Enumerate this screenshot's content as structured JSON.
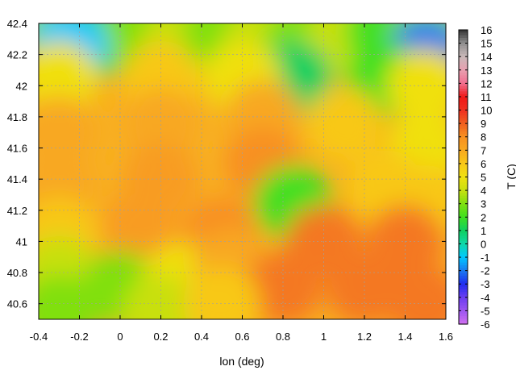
{
  "chart_data": {
    "type": "heatmap",
    "title": "",
    "xlabel": "lon (deg)",
    "ylabel": "",
    "colorbar_label": "T (C)",
    "xlim": [
      -0.4,
      1.6
    ],
    "ylim": [
      40.5,
      42.4
    ],
    "x_ticks": [
      "-0.4",
      "-0.2",
      "0",
      "0.2",
      "0.4",
      "0.6",
      "0.8",
      "1",
      "1.2",
      "1.4",
      "1.6"
    ],
    "y_ticks": [
      "40.6",
      "40.8",
      "41",
      "41.2",
      "41.4",
      "41.6",
      "41.8",
      "42",
      "42.2",
      "42.4"
    ],
    "colorbar_range": [
      -6,
      16
    ],
    "colorbar_ticks": [
      "16",
      "15",
      "14",
      "13",
      "12",
      "11",
      "10",
      "9",
      "8",
      "7",
      "6",
      "5",
      "4",
      "3",
      "2",
      "1",
      "0",
      "-1",
      "-2",
      "-3",
      "-4",
      "-5",
      "-6"
    ],
    "grid": true,
    "colormap": [
      {
        "t": -6,
        "color": "#d070f0"
      },
      {
        "t": -4,
        "color": "#6a3cf0"
      },
      {
        "t": -3,
        "color": "#1e2ef0"
      },
      {
        "t": -2,
        "color": "#1a7af0"
      },
      {
        "t": -1,
        "color": "#00c8ff"
      },
      {
        "t": 0,
        "color": "#10d8a8"
      },
      {
        "t": 1,
        "color": "#10d060"
      },
      {
        "t": 2,
        "color": "#40e020"
      },
      {
        "t": 3,
        "color": "#80e010"
      },
      {
        "t": 4,
        "color": "#c8e010"
      },
      {
        "t": 5,
        "color": "#f0e010"
      },
      {
        "t": 6,
        "color": "#f8c818"
      },
      {
        "t": 7,
        "color": "#f8a820"
      },
      {
        "t": 8,
        "color": "#f89020"
      },
      {
        "t": 9,
        "color": "#f06020"
      },
      {
        "t": 10,
        "color": "#f03020"
      },
      {
        "t": 11,
        "color": "#f01818"
      },
      {
        "t": 12,
        "color": "#f07090"
      },
      {
        "t": 13,
        "color": "#e8a0b0"
      },
      {
        "t": 14,
        "color": "#c8b8b8"
      },
      {
        "t": 15,
        "color": "#909090"
      },
      {
        "t": 16,
        "color": "#303030"
      }
    ],
    "temperature_samples": [
      {
        "lon": -0.3,
        "lat": 42.35,
        "t": 3
      },
      {
        "lon": -0.1,
        "lat": 42.3,
        "t": 2
      },
      {
        "lon": 0.1,
        "lat": 42.35,
        "t": 3
      },
      {
        "lon": 0.3,
        "lat": 42.3,
        "t": 4
      },
      {
        "lon": 0.5,
        "lat": 42.35,
        "t": 3
      },
      {
        "lon": 0.7,
        "lat": 42.3,
        "t": 4
      },
      {
        "lon": 0.9,
        "lat": 42.3,
        "t": 3
      },
      {
        "lon": 1.1,
        "lat": 42.3,
        "t": 4
      },
      {
        "lon": 1.3,
        "lat": 42.35,
        "t": 2
      },
      {
        "lon": 1.5,
        "lat": 42.35,
        "t": 3
      },
      {
        "lon": -0.25,
        "lat": 42.25,
        "t": -1
      },
      {
        "lon": 1.5,
        "lat": 42.2,
        "t": -2
      },
      {
        "lon": 0.85,
        "lat": 42.05,
        "t": 1
      },
      {
        "lon": 1.3,
        "lat": 42.05,
        "t": 2
      },
      {
        "lon": -0.3,
        "lat": 42.05,
        "t": 5
      },
      {
        "lon": 0.2,
        "lat": 42.05,
        "t": 6
      },
      {
        "lon": 0.6,
        "lat": 42.05,
        "t": 5
      },
      {
        "lon": 1.5,
        "lat": 42.0,
        "t": 5
      },
      {
        "lon": -0.3,
        "lat": 41.7,
        "t": 7
      },
      {
        "lon": 0.2,
        "lat": 41.75,
        "t": 7
      },
      {
        "lon": 0.7,
        "lat": 41.8,
        "t": 7
      },
      {
        "lon": 1.1,
        "lat": 41.75,
        "t": 6
      },
      {
        "lon": 1.5,
        "lat": 41.6,
        "t": 5
      },
      {
        "lon": -0.3,
        "lat": 41.35,
        "t": 7
      },
      {
        "lon": 0.2,
        "lat": 41.4,
        "t": 7.5
      },
      {
        "lon": 0.7,
        "lat": 41.5,
        "t": 8
      },
      {
        "lon": 1.3,
        "lat": 41.35,
        "t": 6
      },
      {
        "lon": 0.85,
        "lat": 41.25,
        "t": 2
      },
      {
        "lon": 1.5,
        "lat": 41.25,
        "t": 6
      },
      {
        "lon": -0.3,
        "lat": 41.05,
        "t": 6
      },
      {
        "lon": 0.1,
        "lat": 41.1,
        "t": 7.5
      },
      {
        "lon": 0.5,
        "lat": 41.05,
        "t": 8
      },
      {
        "lon": 1.0,
        "lat": 41.0,
        "t": 8.5
      },
      {
        "lon": 1.4,
        "lat": 41.0,
        "t": 8.5
      },
      {
        "lon": -0.3,
        "lat": 40.8,
        "t": 4
      },
      {
        "lon": 0.0,
        "lat": 40.7,
        "t": 3
      },
      {
        "lon": 0.3,
        "lat": 40.75,
        "t": 5
      },
      {
        "lon": 0.55,
        "lat": 40.85,
        "t": 7
      },
      {
        "lon": 0.8,
        "lat": 40.7,
        "t": 8.5
      },
      {
        "lon": 1.2,
        "lat": 40.7,
        "t": 8.5
      },
      {
        "lon": 1.5,
        "lat": 40.6,
        "t": 8.5
      },
      {
        "lon": -0.3,
        "lat": 40.55,
        "t": 3
      },
      {
        "lon": 0.2,
        "lat": 40.55,
        "t": 4
      },
      {
        "lon": 0.5,
        "lat": 40.6,
        "t": 6
      }
    ]
  }
}
